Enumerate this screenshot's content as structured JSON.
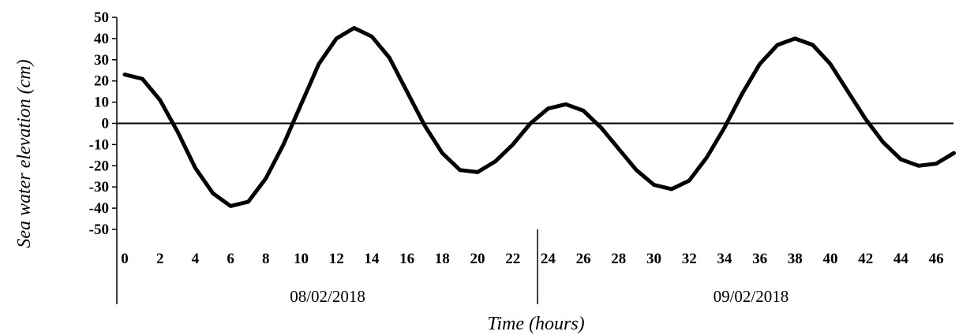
{
  "chart_data": {
    "type": "line",
    "title": "",
    "xlabel": "Time (hours)",
    "ylabel": "Sea water elevation (cm)",
    "ylim": [
      -50,
      50
    ],
    "xlim": [
      0,
      47
    ],
    "grid": false,
    "y_ticks": [
      "50",
      "40",
      "30",
      "20",
      "10",
      "0",
      "-10",
      "-20",
      "-30",
      "-40",
      "-50"
    ],
    "x_ticks": [
      "0",
      "2",
      "4",
      "6",
      "8",
      "10",
      "12",
      "14",
      "16",
      "18",
      "20",
      "22",
      "24",
      "26",
      "28",
      "30",
      "32",
      "34",
      "36",
      "38",
      "40",
      "42",
      "44",
      "46"
    ],
    "date_groups": [
      {
        "label": "08/02/2018",
        "hours": [
          0,
          23
        ]
      },
      {
        "label": "09/02/2018",
        "hours": [
          24,
          47
        ]
      }
    ],
    "series": [
      {
        "name": "",
        "color": "#000000",
        "x": [
          0,
          1,
          2,
          3,
          4,
          5,
          6,
          7,
          8,
          9,
          10,
          11,
          12,
          13,
          14,
          15,
          16,
          17,
          18,
          19,
          20,
          21,
          22,
          23,
          24,
          25,
          26,
          27,
          28,
          29,
          30,
          31,
          32,
          33,
          34,
          35,
          36,
          37,
          38,
          39,
          40,
          41,
          42,
          43,
          44,
          45,
          46,
          47
        ],
        "y": [
          23,
          21,
          11,
          -4,
          -21,
          -33,
          -39,
          -37,
          -26,
          -10,
          9,
          28,
          40,
          45,
          41,
          31,
          15,
          -1,
          -14,
          -22,
          -23,
          -18,
          -10,
          0,
          7,
          9,
          6,
          -2,
          -12,
          -22,
          -29,
          -31,
          -27,
          -16,
          -2,
          14,
          28,
          37,
          40,
          37,
          28,
          15,
          2,
          -9,
          -17,
          -20,
          -19,
          -14
        ]
      }
    ]
  }
}
